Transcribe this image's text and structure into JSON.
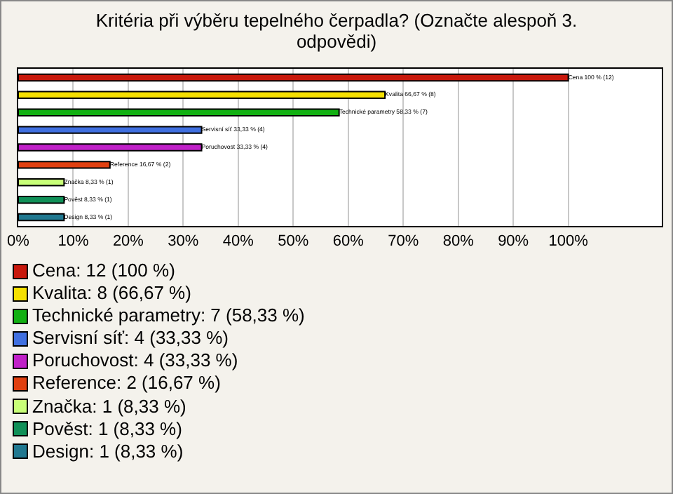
{
  "chart_data": {
    "type": "bar",
    "orientation": "horizontal",
    "title": "Kritéria při výběru tepelného čerpadla? (Označte alespoň 3. odpovědi)",
    "categories": [
      null,
      null,
      null,
      null,
      null,
      null,
      null,
      null,
      null
    ],
    "values": [
      100,
      66.67,
      58.33,
      33.33,
      33.33,
      16.67,
      8.33,
      8.33,
      8.33
    ],
    "colors": [
      "#c8180c",
      "#f5e000",
      "#12b012",
      "#4070e0",
      "#c020c8",
      "#e04010",
      "#c8ff78",
      "#109058",
      "#207890"
    ],
    "value_labels": [
      "Cena 100 % (12)",
      "Kvalita 66,67 % (8)",
      "Technické parametry 58,33 % (7)",
      "Servisní síť 33,33 % (4)",
      "Poruchovost 33,33 % (4)",
      "Reference 16,67 % (2)",
      "Značka 8,33 % (1)",
      "Pověst 8,33 % (1)",
      "Design 8,33 % (1)"
    ],
    "xlim": [
      0,
      117
    ],
    "xticks": [
      {
        "value": 0,
        "label": "0%"
      },
      {
        "value": 10,
        "label": "10%"
      },
      {
        "value": 20,
        "label": "20%"
      },
      {
        "value": 30,
        "label": "30%"
      },
      {
        "value": 40,
        "label": "40%"
      },
      {
        "value": 50,
        "label": "50%"
      },
      {
        "value": 60,
        "label": "60%"
      },
      {
        "value": 70,
        "label": "70%"
      },
      {
        "value": 80,
        "label": "80%"
      },
      {
        "value": 90,
        "label": "90%"
      },
      {
        "value": 100,
        "label": "100%"
      }
    ],
    "grid": "x",
    "annotations": [
      "Cena: 12 (100 %)",
      "Kvalita: 8 (66,67 %)",
      "Technické parametry: 7 (58,33 %)",
      "Servisní síť: 4 (33,33 %)",
      "Poruchovost: 4 (33,33 %)",
      "Reference: 2 (16,67 %)",
      "Značka: 1 (8,33 %)",
      "Pověst: 1 (8,33 %)",
      "Design: 1 (8,33 %)"
    ]
  }
}
